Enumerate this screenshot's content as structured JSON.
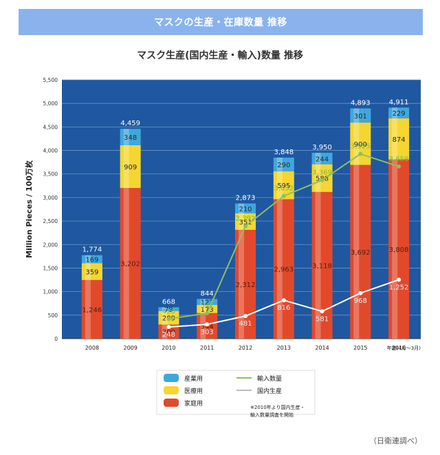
{
  "banner_title": "マスクの生産・在庫数量 推移",
  "source_note": "（日衛連調べ）",
  "colors": {
    "banner": "#8ab3ee",
    "plot_bg": "#1f58a0",
    "industrial": "#3fa7dd",
    "medical": "#f5d631",
    "household": "#e2492b",
    "import_line": "#8dc060",
    "domestic_line": "#ffffff"
  },
  "chart_data": {
    "type": "bar",
    "stacked": true,
    "title": "マスク生産(国内生産・輸入)数量 推移",
    "ylabel": "Million Pieces / 100万枚",
    "xlabel": "年度(4月〜3月)",
    "ylim": [
      0,
      5500
    ],
    "yticks": [
      "0",
      "500",
      "1,000",
      "1,500",
      "2,000",
      "2,500",
      "3,000",
      "3,500",
      "4,000",
      "4,500",
      "5,000",
      "5,500"
    ],
    "grid": true,
    "categories": [
      "2008",
      "2009",
      "2010",
      "2011",
      "2012",
      "2013",
      "2014",
      "2015",
      "2016"
    ],
    "series": [
      {
        "name": "家庭用",
        "key": "household",
        "values": [
          1246,
          3202,
          300,
          544,
          2312,
          2963,
          3118,
          3692,
          3808
        ],
        "labels": [
          "1,246",
          "3,202",
          "300",
          "544",
          "2,312",
          "2,963",
          "3,118",
          "3,692",
          "3,808"
        ]
      },
      {
        "name": "医療用",
        "key": "medical",
        "values": [
          359,
          909,
          289,
          173,
          351,
          595,
          588,
          900,
          874
        ],
        "labels": [
          "359",
          "909",
          "289",
          "173",
          "351",
          "595",
          "588",
          "900",
          "874"
        ]
      },
      {
        "name": "産業用",
        "key": "industrial",
        "values": [
          169,
          348,
          79,
          127,
          210,
          290,
          244,
          301,
          229
        ],
        "labels": [
          "169",
          "348",
          "79",
          "127",
          "210",
          "290",
          "244",
          "301",
          "229"
        ]
      }
    ],
    "totals": [
      1774,
      4459,
      668,
      844,
      2873,
      3848,
      3950,
      4893,
      4911
    ],
    "total_labels": [
      "1,774",
      "4,459",
      "668",
      "844",
      "2,873",
      "3,848",
      "3,950",
      "4,893",
      "4,911"
    ],
    "lines": [
      {
        "name": "輸入数量",
        "key": "import_line",
        "values": [
          null,
          null,
          420,
          541,
          2392,
          3032,
          3369,
          3925,
          3659
        ],
        "labels": [
          "",
          "",
          "420",
          "541",
          "2,392",
          "3,032",
          "3,369",
          "3,925",
          "3,659"
        ]
      },
      {
        "name": "国内生産",
        "key": "domestic_line",
        "values": [
          null,
          null,
          248,
          303,
          481,
          816,
          581,
          968,
          1252
        ],
        "labels": [
          "",
          "",
          "248",
          "303",
          "481",
          "816",
          "581",
          "968",
          "1,252"
        ]
      }
    ],
    "legend": [
      {
        "name": "産業用",
        "kind": "bar",
        "key": "industrial"
      },
      {
        "name": "医療用",
        "kind": "bar",
        "key": "medical"
      },
      {
        "name": "家庭用",
        "kind": "bar",
        "key": "household"
      },
      {
        "name": "輸入数量",
        "kind": "line",
        "key": "import_line"
      },
      {
        "name": "国内生産",
        "kind": "line",
        "key": "domestic_line"
      }
    ],
    "legend_position": "bottom-center",
    "annotation": [
      "※2010年より国内生産・",
      "輸入数量調査を開始"
    ]
  }
}
